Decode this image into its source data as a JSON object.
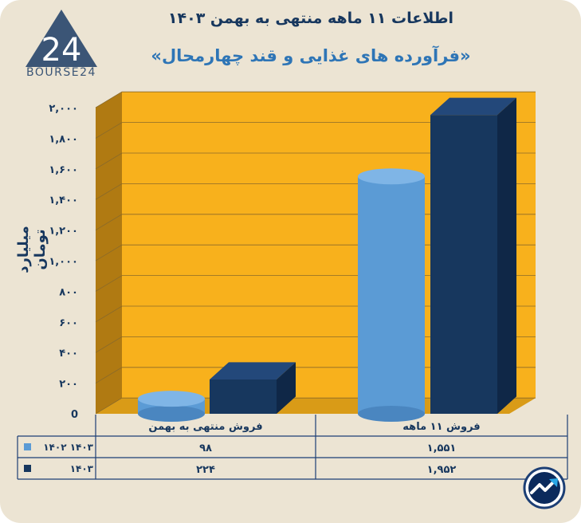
{
  "header": {
    "title": "اطلاعات ۱۱ ماهه منتهی به بهمن ۱۴۰۳",
    "subtitle": "«فرآورده های غذایی و قند چهارمحال»"
  },
  "logo": {
    "text": "BOURSE24",
    "glyph": "24"
  },
  "colors": {
    "background": "#ece4d3",
    "plot_area": "#f8b11c",
    "plot_side": "#b07a12",
    "series_1402": "#5b9bd5",
    "series_1403": "#17375e",
    "text": "#17375e"
  },
  "chart_data": {
    "type": "bar",
    "categories": [
      "فروش منتهی به بهمن",
      "فروش ۱۱ ماهه"
    ],
    "series": [
      {
        "name": "۱۴۰۲ ۱۴۰۳",
        "values": [
          98,
          1551
        ],
        "labels": [
          "۹۸",
          "۱,۵۵۱"
        ],
        "shape": "cylinder"
      },
      {
        "name": "۱۴۰۳",
        "values": [
          224,
          1952
        ],
        "labels": [
          "۲۲۴",
          "۱,۹۵۲"
        ],
        "shape": "box"
      }
    ],
    "ylabel": "میلیارد تومان",
    "ylim": [
      0,
      2000
    ],
    "yticks": [
      0,
      200,
      400,
      600,
      800,
      1000,
      1200,
      1400,
      1600,
      1800,
      2000
    ],
    "ytick_labels": [
      "0",
      "۲۰۰",
      "۴۰۰",
      "۶۰۰",
      "۸۰۰",
      "۱,۰۰۰",
      "۱,۲۰۰",
      "۱,۴۰۰",
      "۱,۶۰۰",
      "۱,۸۰۰",
      "۲,۰۰۰"
    ],
    "grid": true,
    "legend": "data-table"
  },
  "badge": {
    "icon": "trend-arrow-icon"
  }
}
